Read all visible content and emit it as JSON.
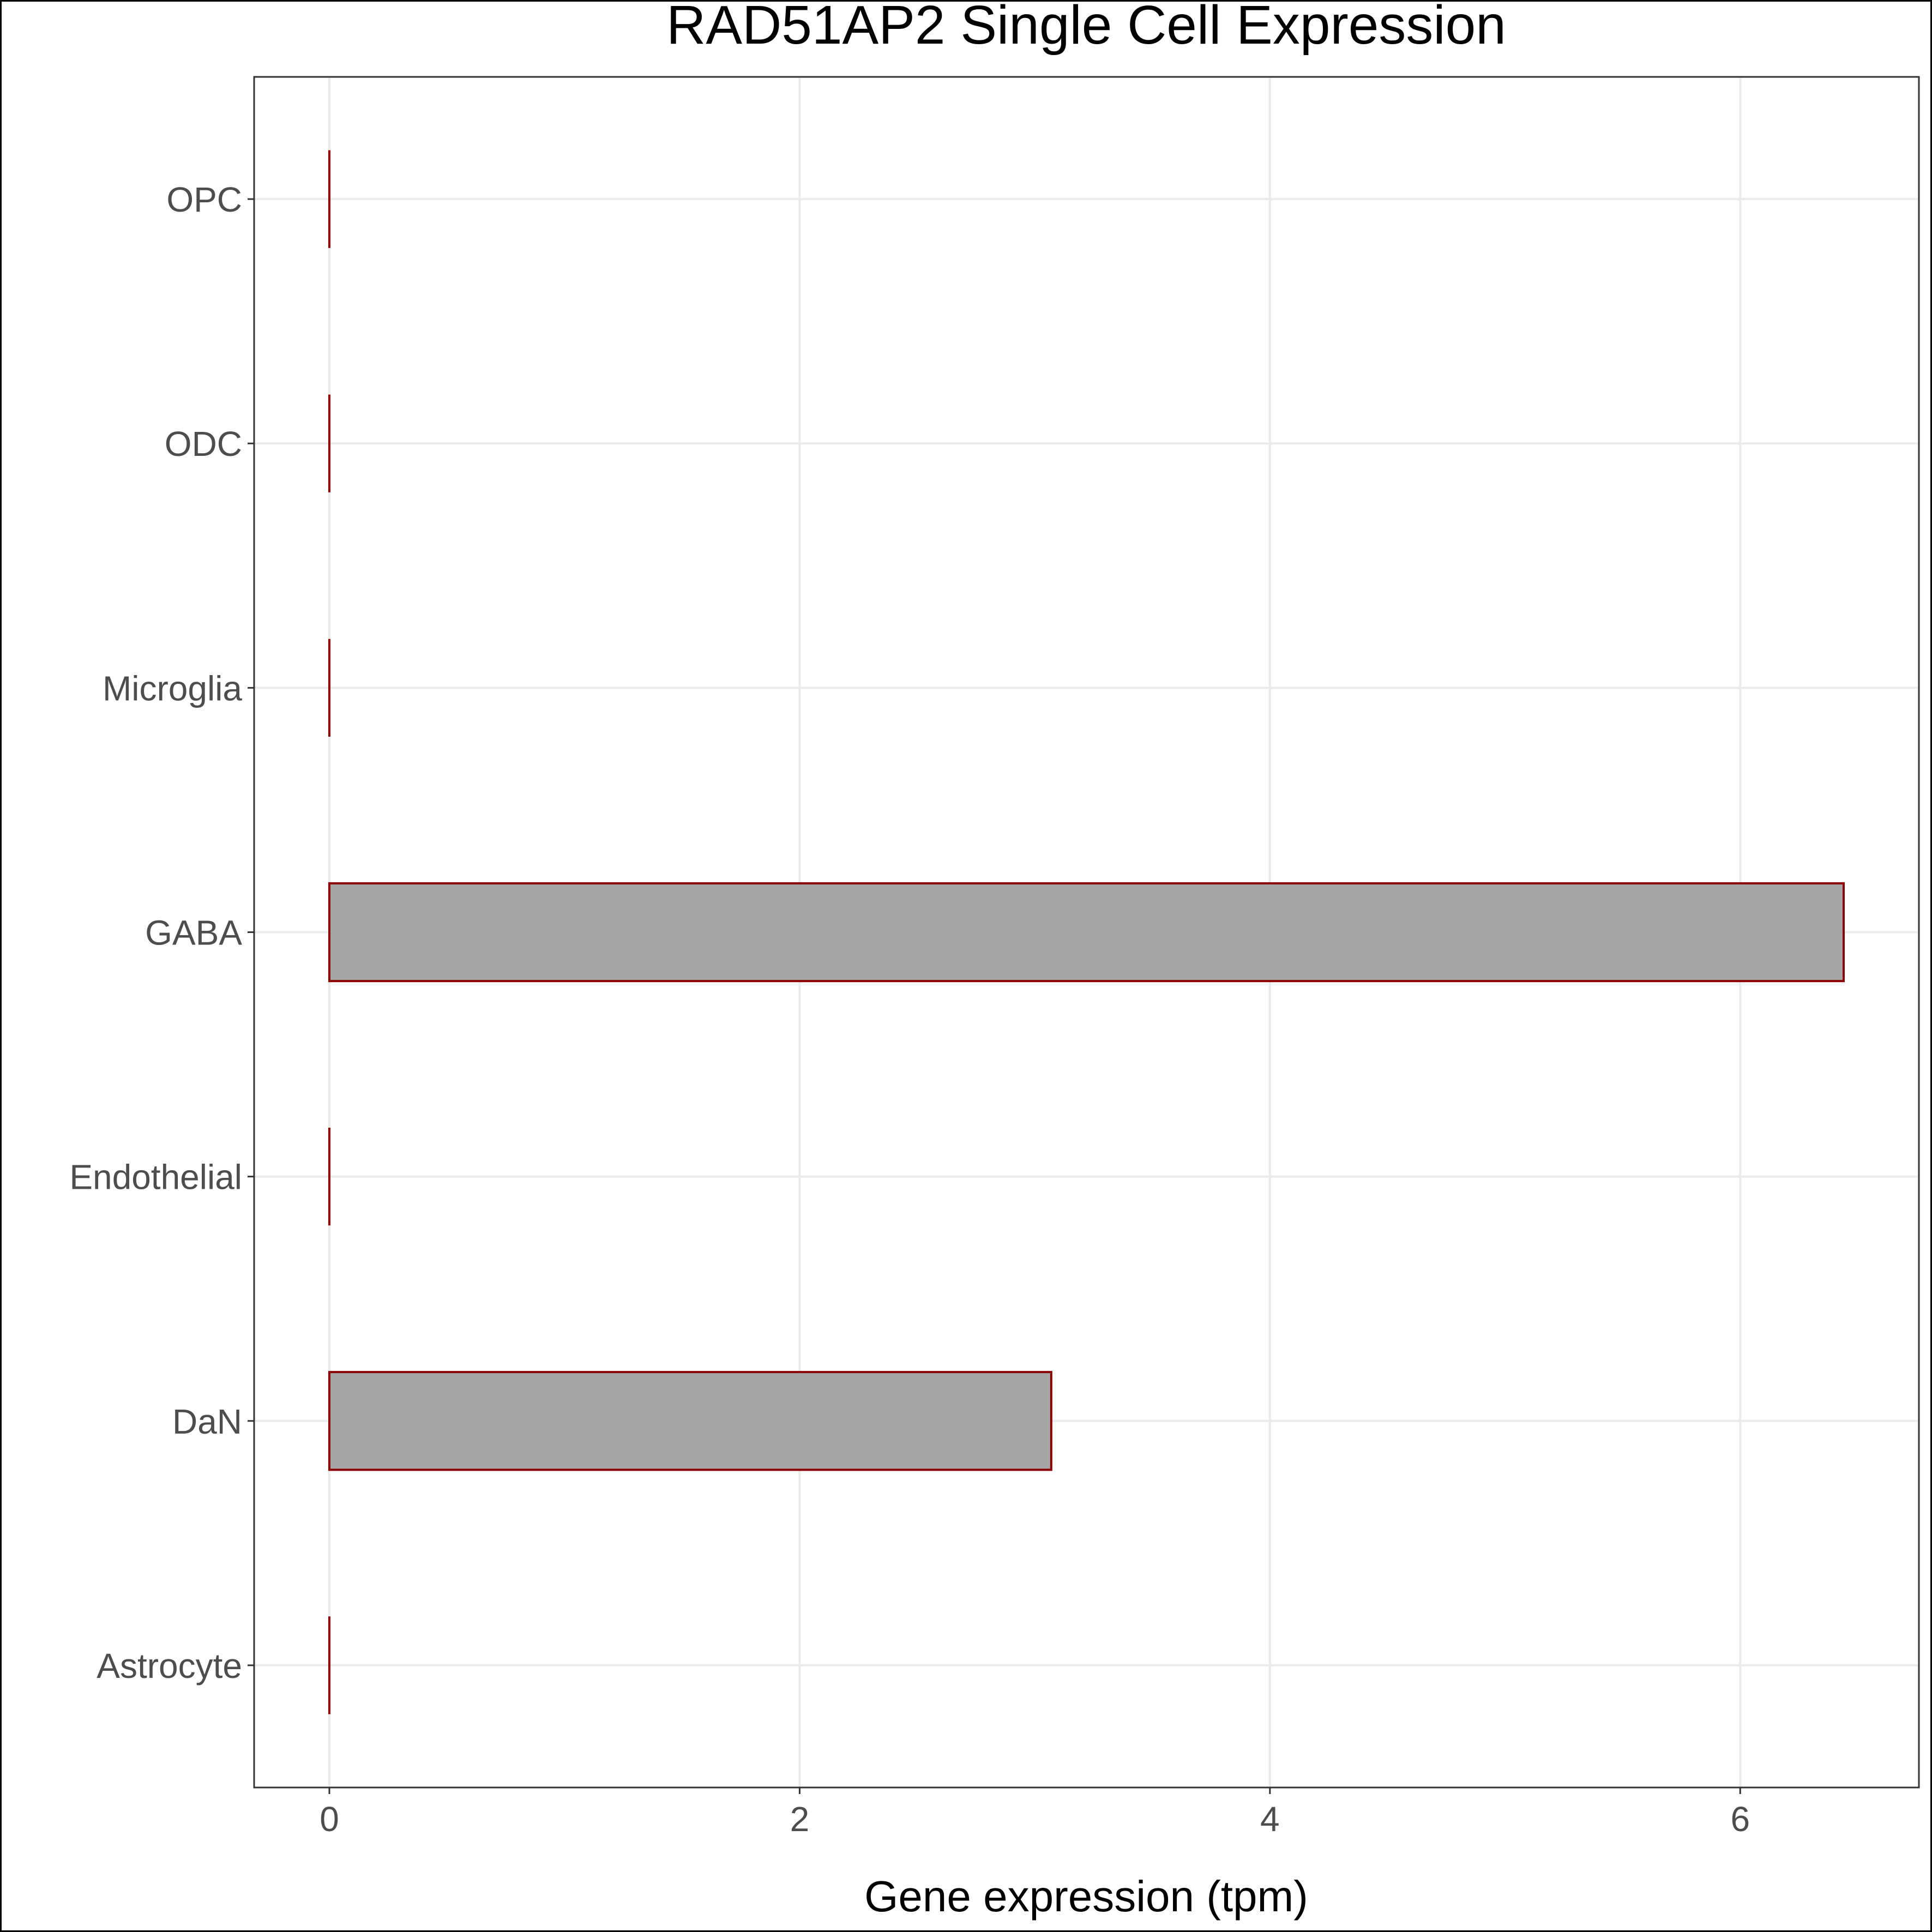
{
  "chart_data": {
    "type": "bar",
    "orientation": "horizontal",
    "title": "RAD51AP2 Single Cell Expression",
    "xlabel": "Gene expression (tpm)",
    "ylabel": "",
    "categories": [
      "Astrocyte",
      "DaN",
      "Endothelial",
      "GABA",
      "Microglia",
      "ODC",
      "OPC"
    ],
    "values": [
      0,
      3.07,
      0,
      6.44,
      0,
      0,
      0
    ],
    "xlim": [
      -0.32,
      6.76
    ],
    "xticks": [
      0,
      2,
      4,
      6
    ],
    "xtick_labels": [
      "0",
      "2",
      "4",
      "6"
    ],
    "grid": true,
    "legend": "none",
    "colors": {
      "bar_fill": "#a6a6a6",
      "bar_stroke": "#8b0000",
      "grid": "#ebebeb",
      "axis_text": "#4d4d4d",
      "title_text": "#000000",
      "panel_border": "#333333"
    }
  }
}
